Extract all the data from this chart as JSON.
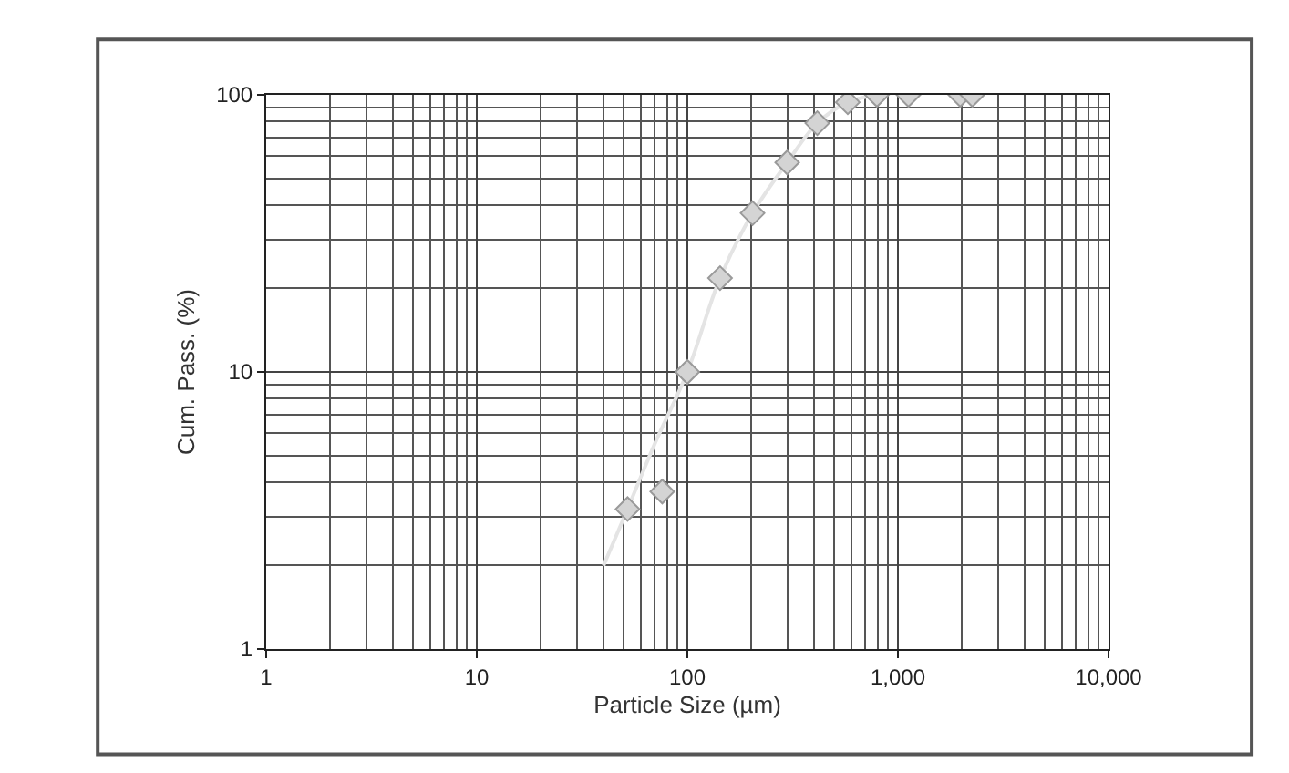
{
  "chart_data": {
    "type": "scatter",
    "xlabel": "Particle Size (µm)",
    "ylabel": "Cum. Pass. (%)",
    "log": "xy",
    "grid": true,
    "marker": "diamond",
    "xlim": [
      1,
      10000
    ],
    "ylim": [
      1,
      100
    ],
    "xticks": [
      1,
      10,
      100,
      {
        "value": 1000,
        "label": "1,000"
      },
      {
        "value": 10000,
        "label": "10,000"
      }
    ],
    "yticks": [
      1,
      10,
      100
    ],
    "series": [
      {
        "type": "line",
        "marker": "none",
        "color": "#e4e4e4",
        "x": [
          40,
          52,
          70,
          100,
          143,
          204,
          298,
          414,
          578,
          795
        ],
        "values": [
          2.0,
          3.2,
          5.5,
          10,
          21.8,
          37.4,
          57,
          79,
          94,
          100
        ]
      },
      {
        "color": "#d4d4d4",
        "x": [
          52,
          76,
          100,
          143,
          204,
          298,
          414,
          578,
          795,
          1122,
          1977,
          2256
        ],
        "values": [
          3.2,
          3.7,
          10,
          21.8,
          37.4,
          57,
          79,
          94,
          100,
          100,
          100,
          100
        ]
      }
    ]
  }
}
